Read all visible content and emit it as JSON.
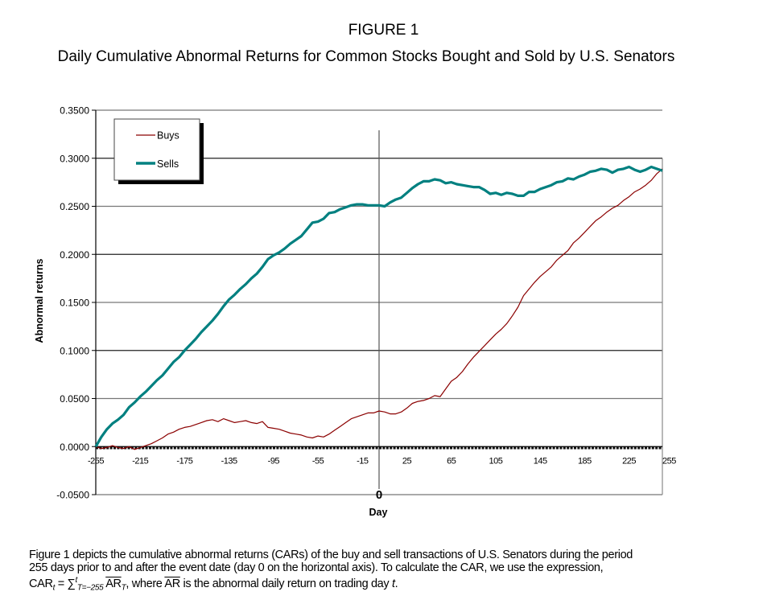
{
  "figure_label": "FIGURE 1",
  "figure_title": "Daily Cumulative Abnormal Returns for Common Stocks Bought and Sold by U.S. Senators",
  "caption": {
    "line1": "Figure 1 depicts the cumulative abnormal returns (CARs) of the buy and sell transactions of U.S. Senators during the period",
    "line2": "255 days prior to and after the event date (day 0 on the horizontal axis).  To calculate the CAR, we use the expression,",
    "formula_lhs": "CAR",
    "formula_lhs_sub": "t",
    "formula_eq": " = ∑",
    "formula_sum_sup": "t",
    "formula_sum_sub": "T=−255",
    "formula_term": "AR",
    "formula_term_sub": "T",
    "formula_rest_1": ", where ",
    "formula_ar": "AR",
    "formula_rest_2": " is the abnormal daily return on trading day ",
    "formula_t": "t",
    "formula_end": "."
  },
  "chart_data": {
    "type": "line",
    "title": "Daily Cumulative Abnormal Returns for Common Stocks Bought and Sold by U.S. Senators",
    "xlabel": "Day",
    "ylabel": "Abnormal returns",
    "xlim": [
      -255,
      255
    ],
    "ylim": [
      -0.05,
      0.35
    ],
    "x_ticks": [
      "-255",
      "-215",
      "-175",
      "-135",
      "-95",
      "-55",
      "-15",
      "25",
      "65",
      "105",
      "145",
      "185",
      "225",
      "255"
    ],
    "x_tick_values": [
      -255,
      -215,
      -175,
      -135,
      -95,
      -55,
      -15,
      25,
      65,
      105,
      145,
      185,
      225,
      255
    ],
    "y_ticks": [
      "0.3500",
      "0.3000",
      "0.2500",
      "0.2000",
      "0.1500",
      "0.1000",
      "0.0500",
      "0.0000",
      "-0.0500"
    ],
    "y_tick_values": [
      0.35,
      0.3,
      0.25,
      0.2,
      0.15,
      0.1,
      0.05,
      0.0,
      -0.05
    ],
    "event_marker_label": "0",
    "event_day": 0,
    "grid": true,
    "legend": {
      "position": "top-left",
      "entries": [
        "Buys",
        "Sells"
      ]
    },
    "series": [
      {
        "name": "Buys",
        "color": "#8b0000",
        "x": [
          -255,
          -250,
          -245,
          -240,
          -235,
          -230,
          -225,
          -220,
          -215,
          -210,
          -205,
          -200,
          -195,
          -190,
          -185,
          -180,
          -175,
          -170,
          -165,
          -160,
          -155,
          -150,
          -145,
          -140,
          -135,
          -130,
          -125,
          -120,
          -115,
          -110,
          -105,
          -100,
          -95,
          -90,
          -85,
          -80,
          -75,
          -70,
          -65,
          -60,
          -55,
          -50,
          -45,
          -40,
          -35,
          -30,
          -25,
          -20,
          -15,
          -10,
          -5,
          0,
          5,
          10,
          15,
          20,
          25,
          30,
          35,
          40,
          45,
          50,
          55,
          60,
          65,
          70,
          75,
          80,
          85,
          90,
          95,
          100,
          105,
          110,
          115,
          120,
          125,
          130,
          135,
          140,
          145,
          150,
          155,
          160,
          165,
          170,
          175,
          180,
          185,
          190,
          195,
          200,
          205,
          210,
          215,
          220,
          225,
          230,
          235,
          240,
          245,
          250,
          255
        ],
        "values": [
          0.0,
          -0.002,
          -0.001,
          0.001,
          -0.001,
          -0.002,
          0.0,
          -0.003,
          -0.001,
          0.001,
          0.003,
          0.006,
          0.009,
          0.013,
          0.015,
          0.018,
          0.02,
          0.021,
          0.023,
          0.025,
          0.027,
          0.028,
          0.026,
          0.029,
          0.027,
          0.025,
          0.026,
          0.027,
          0.025,
          0.024,
          0.026,
          0.02,
          0.019,
          0.018,
          0.016,
          0.014,
          0.013,
          0.012,
          0.01,
          0.009,
          0.011,
          0.01,
          0.013,
          0.017,
          0.021,
          0.025,
          0.029,
          0.031,
          0.033,
          0.035,
          0.035,
          0.037,
          0.036,
          0.034,
          0.034,
          0.036,
          0.04,
          0.045,
          0.047,
          0.048,
          0.05,
          0.053,
          0.052,
          0.06,
          0.068,
          0.072,
          0.078,
          0.086,
          0.093,
          0.099,
          0.105,
          0.111,
          0.117,
          0.122,
          0.128,
          0.136,
          0.145,
          0.157,
          0.164,
          0.171,
          0.177,
          0.182,
          0.187,
          0.194,
          0.199,
          0.204,
          0.212,
          0.217,
          0.223,
          0.229,
          0.235,
          0.239,
          0.244,
          0.248,
          0.251,
          0.256,
          0.26,
          0.265,
          0.268,
          0.272,
          0.277,
          0.284,
          0.289
        ]
      },
      {
        "name": "Sells",
        "color": "#008080",
        "x": [
          -255,
          -250,
          -245,
          -240,
          -235,
          -230,
          -225,
          -220,
          -215,
          -210,
          -205,
          -200,
          -195,
          -190,
          -185,
          -180,
          -175,
          -170,
          -165,
          -160,
          -155,
          -150,
          -145,
          -140,
          -135,
          -130,
          -125,
          -120,
          -115,
          -110,
          -105,
          -100,
          -95,
          -90,
          -85,
          -80,
          -75,
          -70,
          -65,
          -60,
          -55,
          -50,
          -45,
          -40,
          -35,
          -30,
          -25,
          -20,
          -15,
          -10,
          -5,
          0,
          5,
          10,
          15,
          20,
          25,
          30,
          35,
          40,
          45,
          50,
          55,
          60,
          65,
          70,
          75,
          80,
          85,
          90,
          95,
          100,
          105,
          110,
          115,
          120,
          125,
          130,
          135,
          140,
          145,
          150,
          155,
          160,
          165,
          170,
          175,
          180,
          185,
          190,
          195,
          200,
          205,
          210,
          215,
          220,
          225,
          230,
          235,
          240,
          245,
          250,
          255
        ],
        "values": [
          0.0,
          0.01,
          0.018,
          0.024,
          0.028,
          0.033,
          0.041,
          0.046,
          0.052,
          0.057,
          0.063,
          0.069,
          0.074,
          0.081,
          0.088,
          0.093,
          0.1,
          0.106,
          0.112,
          0.119,
          0.125,
          0.131,
          0.138,
          0.146,
          0.153,
          0.158,
          0.164,
          0.169,
          0.175,
          0.18,
          0.187,
          0.195,
          0.199,
          0.202,
          0.206,
          0.211,
          0.215,
          0.219,
          0.226,
          0.233,
          0.234,
          0.237,
          0.243,
          0.244,
          0.247,
          0.249,
          0.251,
          0.252,
          0.252,
          0.251,
          0.251,
          0.251,
          0.25,
          0.254,
          0.257,
          0.259,
          0.264,
          0.269,
          0.273,
          0.276,
          0.276,
          0.278,
          0.277,
          0.274,
          0.275,
          0.273,
          0.272,
          0.271,
          0.27,
          0.27,
          0.267,
          0.263,
          0.264,
          0.262,
          0.264,
          0.263,
          0.261,
          0.261,
          0.265,
          0.265,
          0.268,
          0.27,
          0.272,
          0.275,
          0.276,
          0.279,
          0.278,
          0.281,
          0.283,
          0.286,
          0.287,
          0.289,
          0.288,
          0.285,
          0.288,
          0.289,
          0.291,
          0.288,
          0.286,
          0.288,
          0.291,
          0.289,
          0.287
        ]
      }
    ]
  }
}
